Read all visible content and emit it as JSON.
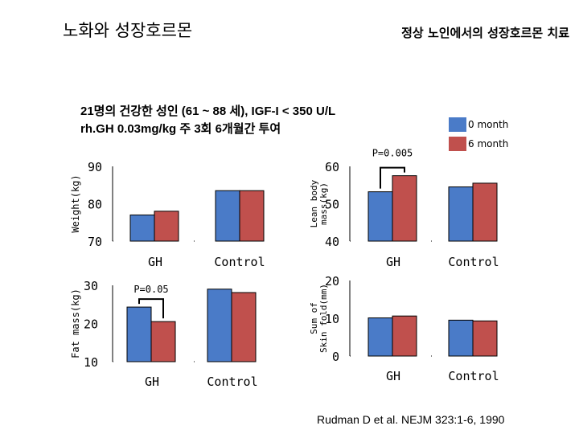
{
  "header": {
    "title_left": "노화와 성장호르몬",
    "title_right": "정상 노인에서의 성장호르몬 치료"
  },
  "description": {
    "line1": "21명의 건강한 성인 (61 ~ 88 세), IGF-I < 350 U/L",
    "line2": "rh.GH 0.03mg/kg 주 3회 6개월간 투여"
  },
  "legend": {
    "items": [
      {
        "label": "0 month",
        "color": "#4a7bc8"
      },
      {
        "label": "6 month",
        "color": "#c0504d"
      }
    ]
  },
  "citation": "Rudman D et al. NEJM 323:1-6, 1990",
  "chart_data": [
    {
      "type": "bar",
      "ylabel": "Weight(kg)",
      "categories": [
        "GH",
        "Control"
      ],
      "series": [
        {
          "name": "0 month",
          "values": [
            77,
            83.5
          ]
        },
        {
          "name": "6 month",
          "values": [
            78,
            83.5
          ]
        }
      ],
      "ylim": [
        70,
        90
      ],
      "yticks": [
        "90",
        "80",
        "70"
      ],
      "annotation": null
    },
    {
      "type": "bar",
      "ylabel": "Lean body mass(kg)",
      "categories": [
        "GH",
        "Control"
      ],
      "series": [
        {
          "name": "0 month",
          "values": [
            53.2,
            54.5
          ]
        },
        {
          "name": "6 month",
          "values": [
            57.5,
            55.5
          ]
        }
      ],
      "ylim": [
        40,
        60
      ],
      "yticks": [
        "60",
        "50",
        "40"
      ],
      "annotation": "P=0.005"
    },
    {
      "type": "bar",
      "ylabel": "Fat mass(kg)",
      "categories": [
        "GH",
        "Control"
      ],
      "series": [
        {
          "name": "0 month",
          "values": [
            24.3,
            29
          ]
        },
        {
          "name": "6 month",
          "values": [
            20.5,
            28.1
          ]
        }
      ],
      "ylim": [
        10,
        30
      ],
      "yticks": [
        "30",
        "20",
        "10"
      ],
      "annotation": "P=0.05"
    },
    {
      "type": "bar",
      "ylabel": "Sum of Skin fold(mm)",
      "categories": [
        "GH",
        "Control"
      ],
      "series": [
        {
          "name": "0 month",
          "values": [
            10.1,
            9.5
          ]
        },
        {
          "name": "6 month",
          "values": [
            10.6,
            9.3
          ]
        }
      ],
      "ylim": [
        0,
        20
      ],
      "yticks": [
        "20",
        "10",
        "0"
      ],
      "annotation": null
    }
  ]
}
